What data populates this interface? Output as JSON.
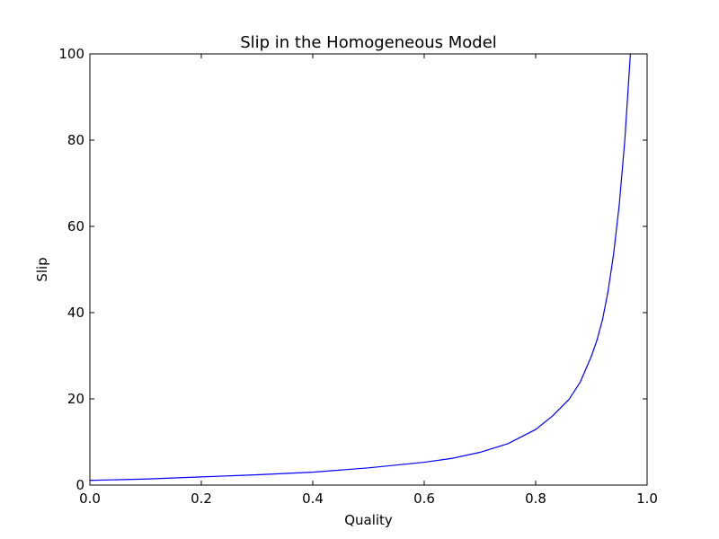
{
  "chart_data": {
    "type": "line",
    "title": "Slip in the Homogeneous Model",
    "xlabel": "Quality",
    "ylabel": "Slip",
    "xlim": [
      0.0,
      1.0
    ],
    "ylim": [
      0,
      100
    ],
    "xticks": [
      "0.0",
      "0.2",
      "0.4",
      "0.6",
      "0.8",
      "1.0"
    ],
    "yticks": [
      "0",
      "20",
      "40",
      "60",
      "80",
      "100"
    ],
    "grid": false,
    "legend": "none",
    "series": [
      {
        "color": "#0000ff",
        "x": [
          0.0,
          0.1,
          0.2,
          0.3,
          0.4,
          0.5,
          0.6,
          0.65,
          0.7,
          0.75,
          0.8,
          0.83,
          0.86,
          0.88,
          0.9,
          0.91,
          0.92,
          0.93,
          0.94,
          0.95,
          0.96,
          0.97
        ],
        "y": [
          1.1,
          1.4,
          1.9,
          2.4,
          3.0,
          4.0,
          5.3,
          6.2,
          7.6,
          9.6,
          12.9,
          16.0,
          19.9,
          23.9,
          29.9,
          33.6,
          38.4,
          45.0,
          53.7,
          65.0,
          80.0,
          100.0
        ]
      }
    ]
  }
}
